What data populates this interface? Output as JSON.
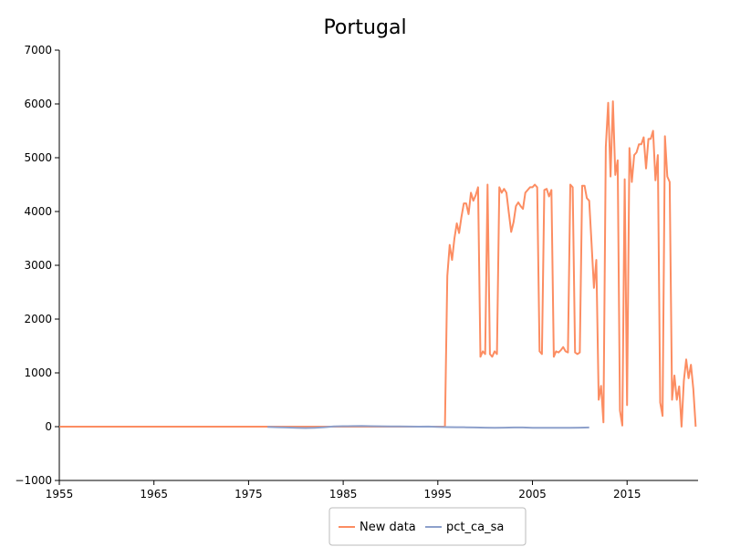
{
  "chart_data": {
    "type": "line",
    "title": "Portugal",
    "xlabel": "",
    "ylabel": "",
    "xlim": [
      1955,
      2022.5
    ],
    "ylim": [
      -1000,
      7000
    ],
    "x_ticks": [
      "1955",
      "1965",
      "1975",
      "1985",
      "1995",
      "2005",
      "2015"
    ],
    "x_tick_values": [
      1955,
      1965,
      1975,
      1985,
      1995,
      2005,
      2015
    ],
    "y_ticks": [
      "−1000",
      "0",
      "1000",
      "2000",
      "3000",
      "4000",
      "5000",
      "6000",
      "7000"
    ],
    "y_tick_values": [
      -1000,
      0,
      1000,
      2000,
      3000,
      4000,
      5000,
      6000,
      7000
    ],
    "grid": false,
    "legend_position": "bottom-center",
    "series": [
      {
        "name": "New data",
        "color": "#fc8d62",
        "x": [
          1955.0,
          1995.75,
          1996.0,
          1996.25,
          1996.5,
          1996.75,
          1997.0,
          1997.25,
          1997.5,
          1997.75,
          1998.0,
          1998.25,
          1998.5,
          1998.75,
          1999.0,
          1999.25,
          1999.5,
          1999.75,
          2000.0,
          2000.25,
          2000.5,
          2000.75,
          2001.0,
          2001.25,
          2001.5,
          2001.75,
          2002.0,
          2002.25,
          2002.5,
          2002.75,
          2003.0,
          2003.25,
          2003.5,
          2003.75,
          2004.0,
          2004.25,
          2004.5,
          2004.75,
          2005.0,
          2005.25,
          2005.5,
          2005.75,
          2006.0,
          2006.25,
          2006.5,
          2006.75,
          2007.0,
          2007.25,
          2007.5,
          2007.75,
          2008.0,
          2008.25,
          2008.5,
          2008.75,
          2009.0,
          2009.25,
          2009.5,
          2009.75,
          2010.0,
          2010.25,
          2010.5,
          2010.75,
          2011.0,
          2011.25,
          2011.5,
          2011.75,
          2012.0,
          2012.25,
          2012.5,
          2012.75,
          2013.0,
          2013.25,
          2013.5,
          2013.75,
          2014.0,
          2014.25,
          2014.5,
          2014.75,
          2015.0,
          2015.25,
          2015.5,
          2015.75,
          2016.0,
          2016.25,
          2016.5,
          2016.75,
          2017.0,
          2017.25,
          2017.5,
          2017.75,
          2018.0,
          2018.25,
          2018.5,
          2018.75,
          2019.0,
          2019.25,
          2019.5,
          2019.75,
          2020.0,
          2020.25,
          2020.5,
          2020.75,
          2021.0,
          2021.25,
          2021.5,
          2021.75,
          2022.0,
          2022.25
        ],
        "y": [
          0,
          0,
          2800,
          3380,
          3100,
          3500,
          3780,
          3600,
          3900,
          4150,
          4150,
          3950,
          4350,
          4200,
          4300,
          4450,
          1300,
          1400,
          1350,
          4500,
          1350,
          1300,
          1400,
          1350,
          4450,
          4350,
          4420,
          4350,
          3980,
          3620,
          3800,
          4100,
          4170,
          4100,
          4050,
          4350,
          4400,
          4450,
          4450,
          4500,
          4450,
          1400,
          1350,
          4400,
          4420,
          4280,
          4400,
          1300,
          1400,
          1380,
          1420,
          1480,
          1400,
          1380,
          4500,
          4450,
          1380,
          1350,
          1380,
          4480,
          4480,
          4250,
          4200,
          3400,
          2580,
          3100,
          500,
          760,
          80,
          5200,
          6020,
          4650,
          6050,
          4680,
          4950,
          300,
          20,
          4600,
          400,
          5180,
          4550,
          5050,
          5100,
          5250,
          5250,
          5380,
          4800,
          5350,
          5350,
          5500,
          4580,
          5050,
          450,
          200,
          5400,
          4650,
          4550,
          500,
          950,
          500,
          750,
          0,
          850,
          1250,
          900,
          1150,
          700,
          0
        ]
      },
      {
        "name": "pct_ca_sa",
        "color": "#8da0cb",
        "x": [
          1977.0,
          1978.0,
          1979.0,
          1980.0,
          1981.0,
          1982.0,
          1983.0,
          1984.0,
          1985.0,
          1986.0,
          1987.0,
          1988.0,
          1989.0,
          1990.0,
          1991.0,
          1992.0,
          1993.0,
          1994.0,
          1995.0,
          1996.0,
          1997.0,
          1998.0,
          1999.0,
          2000.0,
          2001.0,
          2002.0,
          2003.0,
          2004.0,
          2005.0,
          2006.0,
          2007.0,
          2008.0,
          2009.0,
          2010.0,
          2011.0
        ],
        "y": [
          -5,
          -10,
          -15,
          -20,
          -25,
          -20,
          -10,
          5,
          8,
          10,
          12,
          8,
          6,
          5,
          4,
          2,
          0,
          2,
          -5,
          -8,
          -10,
          -12,
          -15,
          -18,
          -20,
          -18,
          -16,
          -15,
          -20,
          -22,
          -22,
          -20,
          -20,
          -18,
          -15
        ]
      }
    ]
  }
}
